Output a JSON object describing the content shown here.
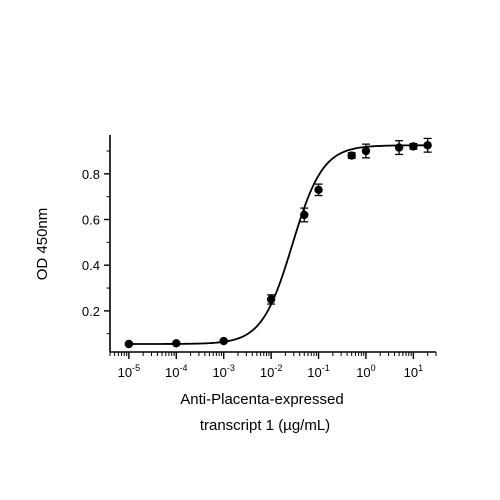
{
  "chart_data": {
    "type": "scatter",
    "title": "",
    "xlabel_line1": "Anti-Placenta-expressed",
    "xlabel_line2": "transcript 1 (µg/mL)",
    "ylabel": "OD 450nm",
    "x_scale": "log",
    "xlim": [
      4e-06,
      30
    ],
    "ylim": [
      0.02,
      0.97
    ],
    "x_ticks": [
      {
        "base": "10",
        "exp": "-5",
        "value": 1e-05
      },
      {
        "base": "10",
        "exp": "-4",
        "value": 0.0001
      },
      {
        "base": "10",
        "exp": "-3",
        "value": 0.001
      },
      {
        "base": "10",
        "exp": "-2",
        "value": 0.01
      },
      {
        "base": "10",
        "exp": "-1",
        "value": 0.1
      },
      {
        "base": "10",
        "exp": "0",
        "value": 1
      },
      {
        "base": "10",
        "exp": "1",
        "value": 10
      }
    ],
    "y_ticks": [
      {
        "label": "0.2",
        "value": 0.2
      },
      {
        "label": "0.4",
        "value": 0.4
      },
      {
        "label": "0.6",
        "value": 0.6
      },
      {
        "label": "0.8",
        "value": 0.8
      }
    ],
    "grid": false,
    "series": [
      {
        "points": [
          {
            "x": 1e-05,
            "y": 0.055,
            "err": 0.005
          },
          {
            "x": 0.0001,
            "y": 0.058,
            "err": 0.005
          },
          {
            "x": 0.001,
            "y": 0.068,
            "err": 0.006
          },
          {
            "x": 0.01,
            "y": 0.25,
            "err": 0.02
          },
          {
            "x": 0.05,
            "y": 0.62,
            "err": 0.03
          },
          {
            "x": 0.1,
            "y": 0.73,
            "err": 0.025
          },
          {
            "x": 0.5,
            "y": 0.88,
            "err": 0.012
          },
          {
            "x": 1,
            "y": 0.9,
            "err": 0.03
          },
          {
            "x": 5,
            "y": 0.915,
            "err": 0.03
          },
          {
            "x": 10,
            "y": 0.92,
            "err": 0.012
          },
          {
            "x": 20,
            "y": 0.925,
            "err": 0.03
          }
        ],
        "fit": {
          "bottom": 0.055,
          "top": 0.925,
          "ec50": 0.028,
          "hill": 1.35
        },
        "color": "#000000"
      }
    ]
  }
}
